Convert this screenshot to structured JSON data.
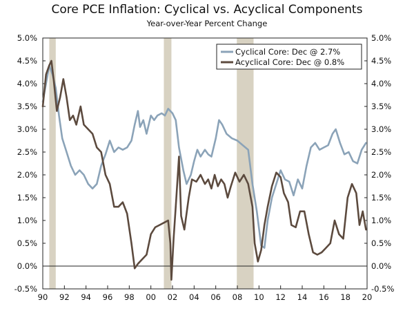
{
  "chart_data": {
    "type": "line",
    "title": "Core PCE Inflation: Cyclical vs. Acyclical Components",
    "subtitle": "Year-over-Year Percent Change",
    "xlim": [
      1990,
      2020
    ],
    "ylim": [
      -0.5,
      5.0
    ],
    "x_ticks": [
      {
        "value": 1990,
        "label": "90"
      },
      {
        "value": 1992,
        "label": "92"
      },
      {
        "value": 1994,
        "label": "94"
      },
      {
        "value": 1996,
        "label": "96"
      },
      {
        "value": 1998,
        "label": "98"
      },
      {
        "value": 2000,
        "label": "00"
      },
      {
        "value": 2002,
        "label": "02"
      },
      {
        "value": 2004,
        "label": "04"
      },
      {
        "value": 2006,
        "label": "06"
      },
      {
        "value": 2008,
        "label": "08"
      },
      {
        "value": 2010,
        "label": "10"
      },
      {
        "value": 2012,
        "label": "12"
      },
      {
        "value": 2014,
        "label": "14"
      },
      {
        "value": 2016,
        "label": "16"
      },
      {
        "value": 2018,
        "label": "18"
      },
      {
        "value": 2020,
        "label": "20"
      }
    ],
    "y_ticks": [
      {
        "value": 5.0,
        "label": "5.0%"
      },
      {
        "value": 4.5,
        "label": "4.5%"
      },
      {
        "value": 4.0,
        "label": "4.0%"
      },
      {
        "value": 3.5,
        "label": "3.5%"
      },
      {
        "value": 3.0,
        "label": "3.0%"
      },
      {
        "value": 2.5,
        "label": "2.5%"
      },
      {
        "value": 2.0,
        "label": "2.0%"
      },
      {
        "value": 1.5,
        "label": "1.5%"
      },
      {
        "value": 1.0,
        "label": "1.0%"
      },
      {
        "value": 0.5,
        "label": "0.5%"
      },
      {
        "value": 0.0,
        "label": "0.0%"
      },
      {
        "value": -0.5,
        "label": "-0.5%"
      }
    ],
    "zero_line": 0,
    "recessions": [
      [
        1990.6,
        1991.2
      ],
      [
        2001.2,
        2001.9
      ],
      [
        2007.95,
        2009.5
      ]
    ],
    "legend_position": "top-right",
    "series": [
      {
        "name": "Cyclical Core: Dec @ 2.7%",
        "color": "#8ba3b8",
        "points": [
          [
            1990.0,
            3.6
          ],
          [
            1990.3,
            4.0
          ],
          [
            1990.6,
            4.4
          ],
          [
            1990.9,
            4.2
          ],
          [
            1991.2,
            3.9
          ],
          [
            1991.5,
            3.3
          ],
          [
            1991.8,
            2.8
          ],
          [
            1992.2,
            2.5
          ],
          [
            1992.6,
            2.2
          ],
          [
            1993.0,
            2.0
          ],
          [
            1993.4,
            2.1
          ],
          [
            1993.8,
            2.0
          ],
          [
            1994.2,
            1.8
          ],
          [
            1994.6,
            1.7
          ],
          [
            1995.0,
            1.8
          ],
          [
            1995.4,
            2.2
          ],
          [
            1995.8,
            2.45
          ],
          [
            1996.2,
            2.75
          ],
          [
            1996.6,
            2.5
          ],
          [
            1997.0,
            2.6
          ],
          [
            1997.4,
            2.55
          ],
          [
            1997.8,
            2.6
          ],
          [
            1998.2,
            2.75
          ],
          [
            1998.5,
            3.1
          ],
          [
            1998.8,
            3.4
          ],
          [
            1999.0,
            3.05
          ],
          [
            1999.3,
            3.2
          ],
          [
            1999.6,
            2.9
          ],
          [
            2000.0,
            3.3
          ],
          [
            2000.3,
            3.2
          ],
          [
            2000.6,
            3.3
          ],
          [
            2001.0,
            3.35
          ],
          [
            2001.3,
            3.3
          ],
          [
            2001.6,
            3.45
          ],
          [
            2002.0,
            3.35
          ],
          [
            2002.3,
            3.2
          ],
          [
            2002.6,
            2.6
          ],
          [
            2003.0,
            2.1
          ],
          [
            2003.3,
            1.8
          ],
          [
            2003.7,
            2.0
          ],
          [
            2004.0,
            2.3
          ],
          [
            2004.3,
            2.55
          ],
          [
            2004.6,
            2.4
          ],
          [
            2005.0,
            2.55
          ],
          [
            2005.3,
            2.45
          ],
          [
            2005.6,
            2.4
          ],
          [
            2006.0,
            2.8
          ],
          [
            2006.3,
            3.2
          ],
          [
            2006.6,
            3.1
          ],
          [
            2007.0,
            2.9
          ],
          [
            2007.5,
            2.8
          ],
          [
            2008.0,
            2.75
          ],
          [
            2008.5,
            2.65
          ],
          [
            2009.0,
            2.55
          ],
          [
            2009.4,
            1.8
          ],
          [
            2009.8,
            1.2
          ],
          [
            2010.2,
            0.45
          ],
          [
            2010.5,
            0.4
          ],
          [
            2010.8,
            1.0
          ],
          [
            2011.2,
            1.5
          ],
          [
            2011.6,
            1.8
          ],
          [
            2012.0,
            2.1
          ],
          [
            2012.4,
            1.9
          ],
          [
            2012.8,
            1.85
          ],
          [
            2013.2,
            1.55
          ],
          [
            2013.6,
            1.9
          ],
          [
            2014.0,
            1.7
          ],
          [
            2014.4,
            2.2
          ],
          [
            2014.8,
            2.6
          ],
          [
            2015.2,
            2.7
          ],
          [
            2015.6,
            2.55
          ],
          [
            2016.0,
            2.6
          ],
          [
            2016.4,
            2.65
          ],
          [
            2016.8,
            2.9
          ],
          [
            2017.1,
            3.0
          ],
          [
            2017.5,
            2.7
          ],
          [
            2017.9,
            2.45
          ],
          [
            2018.3,
            2.5
          ],
          [
            2018.7,
            2.3
          ],
          [
            2019.1,
            2.25
          ],
          [
            2019.5,
            2.55
          ],
          [
            2019.9,
            2.7
          ]
        ]
      },
      {
        "name": "Acyclical Core: Dec @ 0.8%",
        "color": "#5c4a3e",
        "points": [
          [
            1990.0,
            3.5
          ],
          [
            1990.3,
            4.2
          ],
          [
            1990.6,
            4.4
          ],
          [
            1990.8,
            4.5
          ],
          [
            1991.0,
            4.1
          ],
          [
            1991.3,
            3.4
          ],
          [
            1991.6,
            3.7
          ],
          [
            1991.9,
            4.1
          ],
          [
            1992.2,
            3.7
          ],
          [
            1992.5,
            3.2
          ],
          [
            1992.8,
            3.3
          ],
          [
            1993.1,
            3.1
          ],
          [
            1993.5,
            3.5
          ],
          [
            1993.8,
            3.1
          ],
          [
            1994.2,
            3.0
          ],
          [
            1994.6,
            2.9
          ],
          [
            1995.0,
            2.6
          ],
          [
            1995.4,
            2.5
          ],
          [
            1995.8,
            2.0
          ],
          [
            1996.2,
            1.8
          ],
          [
            1996.6,
            1.3
          ],
          [
            1997.0,
            1.3
          ],
          [
            1997.4,
            1.4
          ],
          [
            1997.8,
            1.15
          ],
          [
            1998.2,
            0.5
          ],
          [
            1998.5,
            -0.05
          ],
          [
            1998.8,
            0.05
          ],
          [
            1999.2,
            0.15
          ],
          [
            1999.6,
            0.25
          ],
          [
            2000.0,
            0.7
          ],
          [
            2000.4,
            0.85
          ],
          [
            2000.8,
            0.9
          ],
          [
            2001.2,
            0.95
          ],
          [
            2001.6,
            1.0
          ],
          [
            2001.8,
            0.5
          ],
          [
            2001.9,
            -0.3
          ],
          [
            2002.1,
            0.6
          ],
          [
            2002.3,
            1.3
          ],
          [
            2002.6,
            2.4
          ],
          [
            2002.8,
            1.1
          ],
          [
            2003.1,
            0.8
          ],
          [
            2003.5,
            1.5
          ],
          [
            2003.8,
            1.9
          ],
          [
            2004.2,
            1.85
          ],
          [
            2004.6,
            2.0
          ],
          [
            2005.0,
            1.8
          ],
          [
            2005.3,
            1.9
          ],
          [
            2005.6,
            1.7
          ],
          [
            2005.9,
            2.0
          ],
          [
            2006.2,
            1.75
          ],
          [
            2006.5,
            1.9
          ],
          [
            2006.8,
            1.8
          ],
          [
            2007.1,
            1.5
          ],
          [
            2007.4,
            1.75
          ],
          [
            2007.8,
            2.05
          ],
          [
            2008.2,
            1.85
          ],
          [
            2008.6,
            2.0
          ],
          [
            2009.0,
            1.8
          ],
          [
            2009.4,
            1.3
          ],
          [
            2009.6,
            0.5
          ],
          [
            2009.9,
            0.1
          ],
          [
            2010.2,
            0.35
          ],
          [
            2010.5,
            0.9
          ],
          [
            2010.8,
            1.3
          ],
          [
            2011.2,
            1.75
          ],
          [
            2011.6,
            2.05
          ],
          [
            2012.0,
            1.95
          ],
          [
            2012.3,
            1.6
          ],
          [
            2012.7,
            1.4
          ],
          [
            2013.0,
            0.9
          ],
          [
            2013.4,
            0.85
          ],
          [
            2013.8,
            1.2
          ],
          [
            2014.2,
            1.2
          ],
          [
            2014.6,
            0.7
          ],
          [
            2015.0,
            0.3
          ],
          [
            2015.4,
            0.25
          ],
          [
            2015.8,
            0.3
          ],
          [
            2016.2,
            0.4
          ],
          [
            2016.6,
            0.5
          ],
          [
            2017.0,
            1.0
          ],
          [
            2017.4,
            0.7
          ],
          [
            2017.8,
            0.6
          ],
          [
            2018.2,
            1.5
          ],
          [
            2018.6,
            1.8
          ],
          [
            2019.0,
            1.6
          ],
          [
            2019.3,
            0.9
          ],
          [
            2019.6,
            1.2
          ],
          [
            2019.9,
            0.8
          ]
        ]
      }
    ]
  }
}
